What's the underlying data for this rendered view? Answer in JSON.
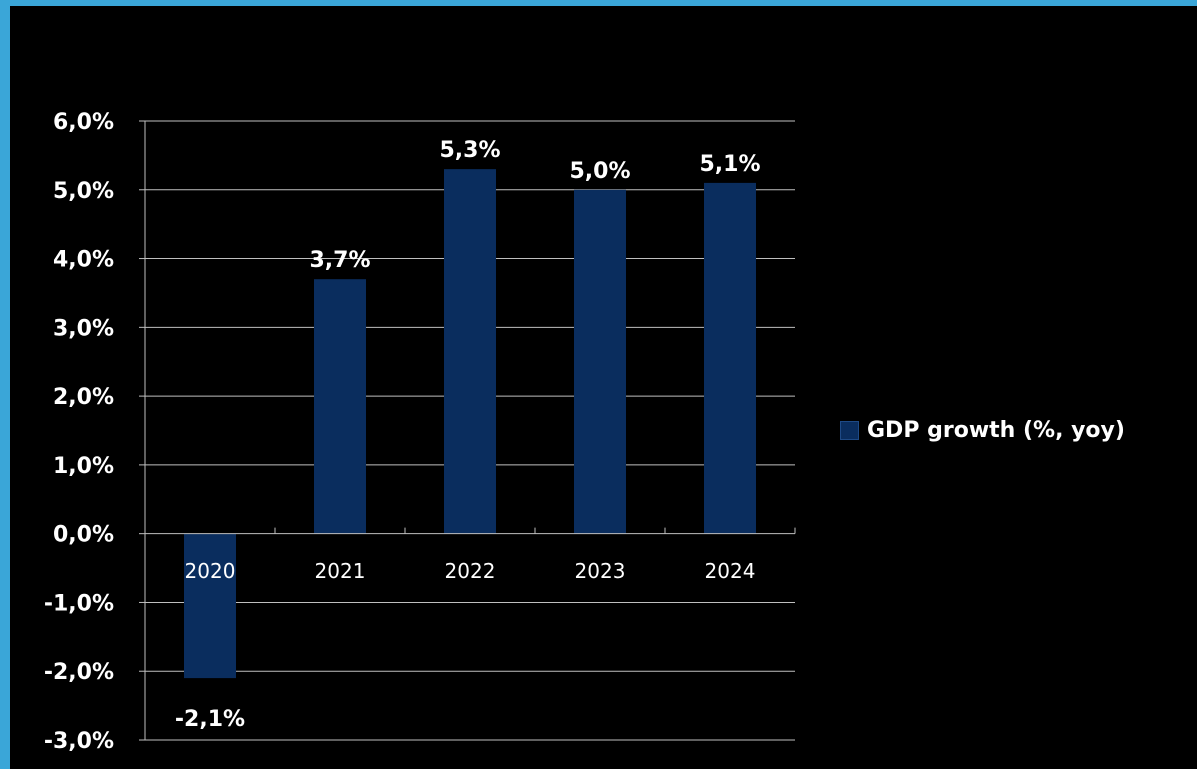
{
  "colors": {
    "background": "#000000",
    "frame": "#3aa6d8",
    "bar": "#0a2d5e",
    "gridline": "#bfbfbf",
    "text": "#ffffff"
  },
  "legend": {
    "label": "GDP growth (%, yoy)"
  },
  "chart_data": {
    "type": "bar",
    "title": "",
    "xlabel": "",
    "ylabel": "",
    "categories": [
      "2020",
      "2021",
      "2022",
      "2023",
      "2024"
    ],
    "series": [
      {
        "name": "GDP growth (%, yoy)",
        "values": [
          -2.1,
          3.7,
          5.3,
          5.0,
          5.1
        ],
        "labels": [
          "-2,1%",
          "3,7%",
          "5,3%",
          "5,0%",
          "5,1%"
        ]
      }
    ],
    "ylim": [
      -3.0,
      6.0
    ],
    "yticks": [
      6.0,
      5.0,
      4.0,
      3.0,
      2.0,
      1.0,
      0.0,
      -1.0,
      -2.0,
      -3.0
    ],
    "ytick_labels": [
      "6,0%",
      "5,0%",
      "4,0%",
      "3,0%",
      "2,0%",
      "1,0%",
      "0,0%",
      "-1,0%",
      "-2,0%",
      "-3,0%"
    ],
    "grid": true,
    "legend_position": "right"
  }
}
